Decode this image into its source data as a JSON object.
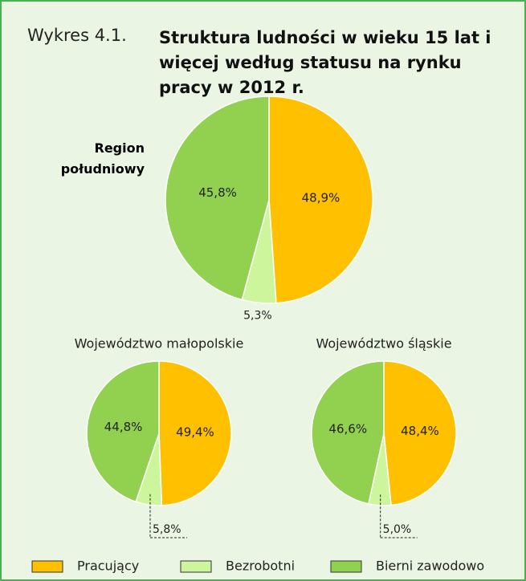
{
  "figure_label": "Wykres 4.1.",
  "title": "Struktura ludności w wieku 15 lat i więcej według statusu na rynku pracy w 2012 r.",
  "chart_data": [
    {
      "type": "pie",
      "title": "Region południowy",
      "categories": [
        "Pracujący",
        "Bezrobotni",
        "Bierni zawodowo"
      ],
      "values": [
        48.9,
        5.3,
        45.8
      ],
      "value_labels": [
        "48,9%",
        "5,3%",
        "45,8%"
      ],
      "colors": [
        "#ffc000",
        "#ccf59c",
        "#92d050"
      ]
    },
    {
      "type": "pie",
      "title": "Województwo małopolskie",
      "categories": [
        "Pracujący",
        "Bezrobotni",
        "Bierni zawodowo"
      ],
      "values": [
        49.4,
        5.8,
        44.8
      ],
      "value_labels": [
        "49,4%",
        "5,8%",
        "44,8%"
      ],
      "colors": [
        "#ffc000",
        "#ccf59c",
        "#92d050"
      ]
    },
    {
      "type": "pie",
      "title": "Województwo śląskie",
      "categories": [
        "Pracujący",
        "Bezrobotni",
        "Bierni zawodowo"
      ],
      "values": [
        48.4,
        5.0,
        46.6
      ],
      "value_labels": [
        "48,4%",
        "5,0%",
        "46,6%"
      ],
      "colors": [
        "#ffc000",
        "#ccf59c",
        "#92d050"
      ]
    }
  ]
}
